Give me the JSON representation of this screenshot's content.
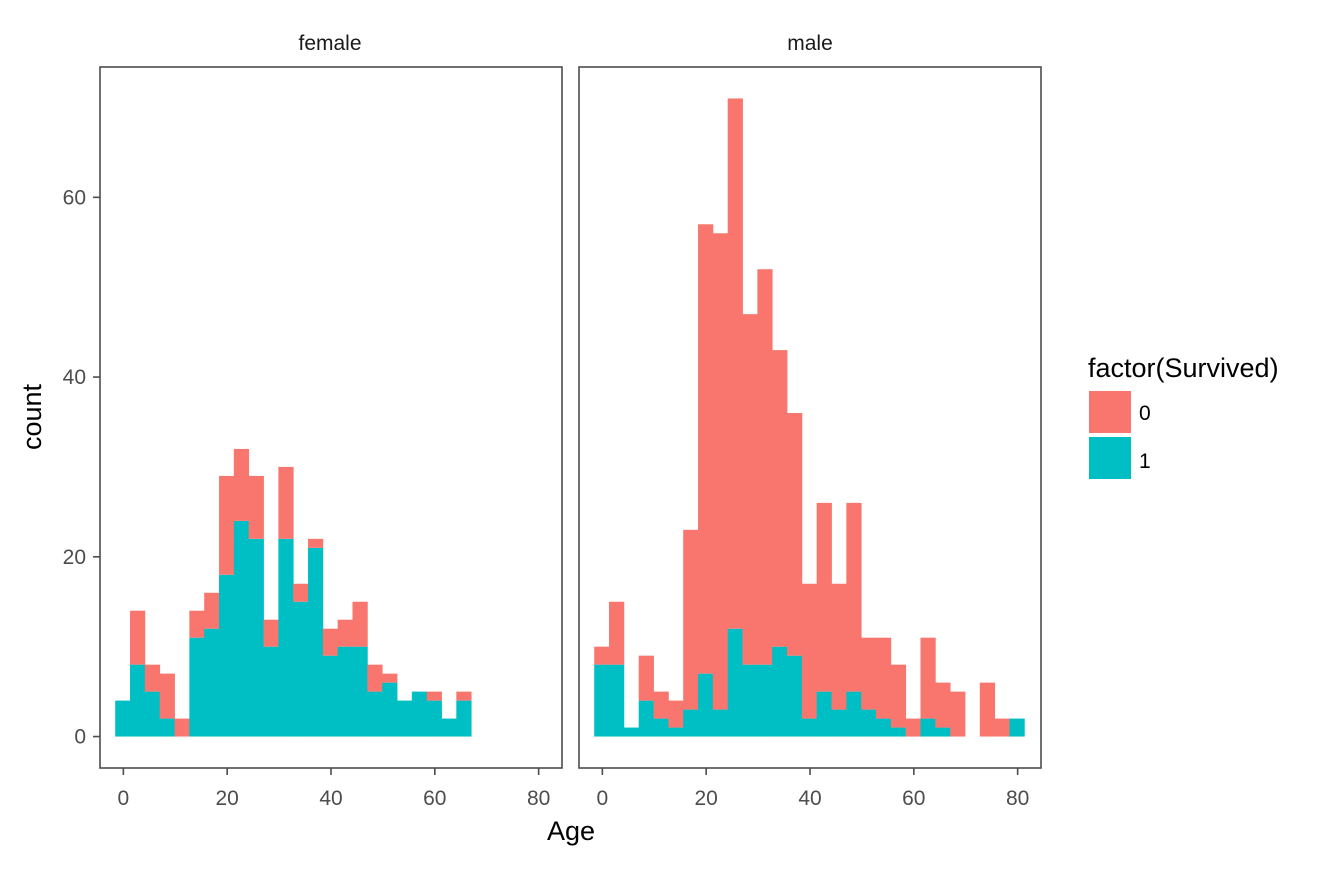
{
  "chart_data": {
    "type": "bar",
    "subtype": "stacked-histogram-faceted",
    "xlabel": "Age",
    "ylabel": "count",
    "xlim": [
      -4.5,
      84.5
    ],
    "ylim": [
      -3.5,
      74.5
    ],
    "x_ticks": [
      0,
      20,
      40,
      60,
      80
    ],
    "y_ticks": [
      0,
      20,
      40,
      60
    ],
    "bin_centers": [
      -0.14,
      2.71,
      5.57,
      8.43,
      11.29,
      14.14,
      17.0,
      19.86,
      22.71,
      25.57,
      28.43,
      31.29,
      34.14,
      37.0,
      39.86,
      42.71,
      45.57,
      48.43,
      51.29,
      54.14,
      57.0,
      59.86,
      62.71,
      65.57,
      68.43,
      71.29,
      74.14,
      77.0,
      79.86
    ],
    "bin_width": 2.857,
    "legend": {
      "title": "factor(Survived)",
      "placement": "right",
      "items": [
        {
          "label": "0",
          "color": "#F8766D"
        },
        {
          "label": "1",
          "color": "#00BFC4"
        }
      ]
    },
    "facets": [
      {
        "label": "female",
        "series": [
          {
            "name": "0",
            "color": "#F8766D",
            "values": [
              0,
              6,
              3,
              5,
              2,
              3,
              4,
              11,
              8,
              7,
              3,
              8,
              2,
              1,
              3,
              3,
              5,
              3,
              1,
              0,
              0,
              1,
              0,
              1,
              0,
              0,
              0,
              0,
              0
            ]
          },
          {
            "name": "1",
            "color": "#00BFC4",
            "values": [
              4,
              8,
              5,
              2,
              0,
              11,
              12,
              18,
              24,
              22,
              10,
              22,
              15,
              21,
              9,
              10,
              10,
              5,
              6,
              4,
              5,
              4,
              2,
              4,
              0,
              0,
              0,
              0,
              0
            ]
          }
        ]
      },
      {
        "label": "male",
        "series": [
          {
            "name": "0",
            "color": "#F8766D",
            "values": [
              2,
              7,
              0,
              5,
              3,
              3,
              20,
              50,
              53,
              59,
              39,
              44,
              33,
              27,
              15,
              21,
              14,
              21,
              8,
              9,
              7,
              2,
              9,
              5,
              5,
              0,
              6,
              2,
              0
            ]
          },
          {
            "name": "1",
            "color": "#00BFC4",
            "values": [
              8,
              8,
              1,
              4,
              2,
              1,
              3,
              7,
              3,
              12,
              8,
              8,
              10,
              9,
              2,
              5,
              3,
              5,
              3,
              2,
              1,
              0,
              2,
              1,
              0,
              0,
              0,
              0,
              2
            ]
          }
        ]
      }
    ]
  }
}
